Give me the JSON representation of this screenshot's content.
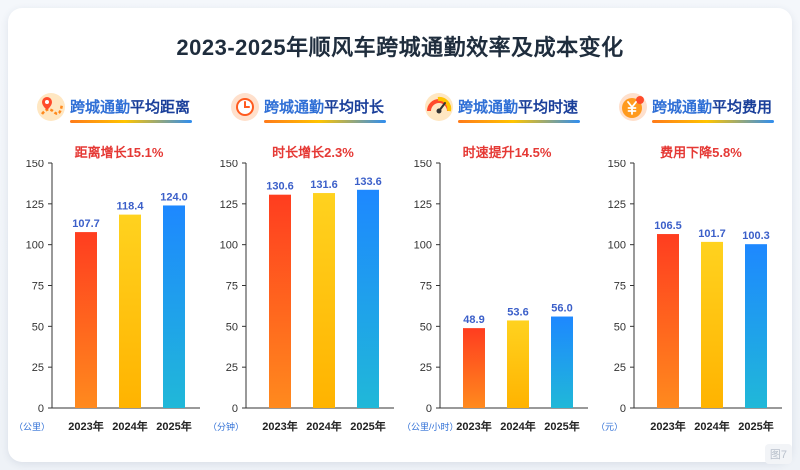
{
  "title": "2023-2025年顺风车跨城通勤效率及成本变化",
  "watermark": "图7",
  "colors": {
    "title": "#1f2d3d",
    "accent_blue": "#2f6fd6",
    "change_red": "#e53935",
    "value_label": "#3b5fc9",
    "bar_2023": [
      "#ff3d1f",
      "#ff8a1e"
    ],
    "bar_2024": [
      "#ffd21f",
      "#ffb300"
    ],
    "bar_2025": [
      "#1e88ff",
      "#20b8d8"
    ]
  },
  "panels": [
    {
      "head_prefix": "跨城通勤",
      "head_emph": "平均距离",
      "icon": "map-pin-route-icon",
      "change": "距离增长15.1%",
      "unit": "（公里）"
    },
    {
      "head_prefix": "跨城通勤",
      "head_emph": "平均时长",
      "icon": "clock-icon",
      "change": "时长增长2.3%",
      "unit": "（分钟）"
    },
    {
      "head_prefix": "跨城通勤",
      "head_emph": "平均时速",
      "icon": "speedometer-icon",
      "change": "时速提升14.5%",
      "unit": "（公里/小时）"
    },
    {
      "head_prefix": "跨城通勤",
      "head_emph": "平均费用",
      "icon": "yuan-coin-icon",
      "change": "费用下降5.8%",
      "unit": "（元）"
    }
  ],
  "chart_data": [
    {
      "type": "bar",
      "categories": [
        "2023年",
        "2024年",
        "2025年"
      ],
      "values": [
        107.7,
        118.4,
        124.0
      ],
      "value_labels": [
        "107.7",
        "118.4",
        "124.0"
      ],
      "ylim": [
        0,
        150
      ],
      "yticks": [
        0,
        25,
        50,
        75,
        100,
        125,
        150
      ],
      "ylabel": "（公里）",
      "grid": false
    },
    {
      "type": "bar",
      "categories": [
        "2023年",
        "2024年",
        "2025年"
      ],
      "values": [
        130.6,
        131.6,
        133.6
      ],
      "value_labels": [
        "130.6",
        "131.6",
        "133.6"
      ],
      "ylim": [
        0,
        150
      ],
      "yticks": [
        0,
        25,
        50,
        75,
        100,
        125,
        150
      ],
      "ylabel": "（分钟）",
      "grid": false
    },
    {
      "type": "bar",
      "categories": [
        "2023年",
        "2024年",
        "2025年"
      ],
      "values": [
        48.9,
        53.6,
        56.0
      ],
      "value_labels": [
        "48.9",
        "53.6",
        "56.0"
      ],
      "ylim": [
        0,
        150
      ],
      "yticks": [
        0,
        25,
        50,
        75,
        100,
        125,
        150
      ],
      "ylabel": "（公里/小时）",
      "grid": false
    },
    {
      "type": "bar",
      "categories": [
        "2023年",
        "2024年",
        "2025年"
      ],
      "values": [
        106.5,
        101.7,
        100.3
      ],
      "value_labels": [
        "106.5",
        "101.7",
        "100.3"
      ],
      "ylim": [
        0,
        150
      ],
      "yticks": [
        0,
        25,
        50,
        75,
        100,
        125,
        150
      ],
      "ylabel": "（元）",
      "grid": false
    }
  ]
}
